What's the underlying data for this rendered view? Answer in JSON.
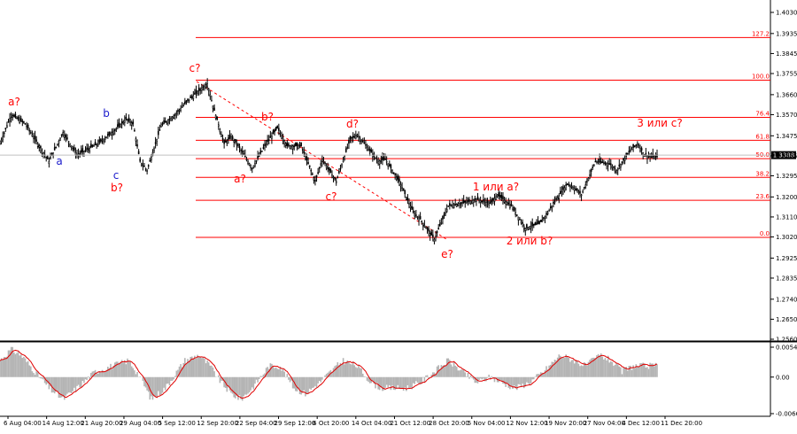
{
  "chart_data": {
    "type": "candlestick",
    "instrument_current_price": "1.3388",
    "price_axis": {
      "min": 1.256,
      "max": 1.403,
      "ticks": [
        "1.4030",
        "1.3935",
        "1.3845",
        "1.3755",
        "1.3660",
        "1.3570",
        "1.3475",
        "1.3385",
        "1.3295",
        "1.3200",
        "1.3110",
        "1.3020",
        "1.2925",
        "1.2835",
        "1.2740",
        "1.2650",
        "1.2560"
      ]
    },
    "time_axis": {
      "labels": [
        "6 Aug 04:00",
        "14 Aug 12:00",
        "21 Aug 20:00",
        "29 Aug 04:00",
        "5 Sep 12:00",
        "12 Sep 20:00",
        "22 Sep 04:00",
        "29 Sep 12:00",
        "6 Oct 20:00",
        "14 Oct 04:00",
        "21 Oct 12:00",
        "28 Oct 20:00",
        "5 Nov 04:00",
        "12 Nov 12:00",
        "19 Nov 20:00",
        "27 Nov 04:00",
        "4 Dec 12:00",
        "11 Dec 20:00"
      ]
    },
    "fibonacci_levels": [
      {
        "label": "127.2",
        "price": 1.3917
      },
      {
        "label": "100.0",
        "price": 1.3725
      },
      {
        "label": "76.4",
        "price": 1.3558
      },
      {
        "label": "61.8",
        "price": 1.3455
      },
      {
        "label": "50.0",
        "price": 1.3372
      },
      {
        "label": "38.2",
        "price": 1.3288
      },
      {
        "label": "23.6",
        "price": 1.3185
      },
      {
        "label": "0.0",
        "price": 1.3018
      }
    ],
    "wave_labels": [
      {
        "text": "a?",
        "color": "#ff0000"
      },
      {
        "text": "a",
        "color": "#1c1ccc"
      },
      {
        "text": "b",
        "color": "#1c1ccc"
      },
      {
        "text": "c",
        "color": "#1c1ccc"
      },
      {
        "text": "b?",
        "color": "#ff0000"
      },
      {
        "text": "c?",
        "color": "#ff0000"
      },
      {
        "text": "a?",
        "color": "#ff0000"
      },
      {
        "text": "b?",
        "color": "#ff0000"
      },
      {
        "text": "c?",
        "color": "#ff0000"
      },
      {
        "text": "d?",
        "color": "#ff0000"
      },
      {
        "text": "e?",
        "color": "#ff0000"
      },
      {
        "text": "1 или a?",
        "color": "#ff0000"
      },
      {
        "text": "2 или b?",
        "color": "#ff0000"
      },
      {
        "text": "3 или c?",
        "color": "#ff0000"
      }
    ],
    "price_path_keypoints": [
      [
        1.344,
        0
      ],
      [
        1.357,
        8
      ],
      [
        1.353,
        18
      ],
      [
        1.341,
        30
      ],
      [
        1.336,
        35
      ],
      [
        1.349,
        45
      ],
      [
        1.339,
        55
      ],
      [
        1.344,
        70
      ],
      [
        1.349,
        80
      ],
      [
        1.355,
        90
      ],
      [
        1.353,
        95
      ],
      [
        1.336,
        100
      ],
      [
        1.332,
        105
      ],
      [
        1.352,
        115
      ],
      [
        1.357,
        125
      ],
      [
        1.364,
        135
      ],
      [
        1.371,
        148
      ],
      [
        1.361,
        152
      ],
      [
        1.344,
        160
      ],
      [
        1.347,
        165
      ],
      [
        1.343,
        170
      ],
      [
        1.333,
        180
      ],
      [
        1.344,
        190
      ],
      [
        1.351,
        198
      ],
      [
        1.343,
        205
      ],
      [
        1.343,
        215
      ],
      [
        1.327,
        225
      ],
      [
        1.337,
        230
      ],
      [
        1.327,
        240
      ],
      [
        1.346,
        250
      ],
      [
        1.348,
        255
      ],
      [
        1.336,
        270
      ],
      [
        1.337,
        275
      ],
      [
        1.327,
        285
      ],
      [
        1.313,
        295
      ],
      [
        1.31,
        300
      ],
      [
        1.301,
        310
      ],
      [
        1.316,
        320
      ],
      [
        1.318,
        335
      ],
      [
        1.319,
        340
      ],
      [
        1.317,
        350
      ],
      [
        1.321,
        355
      ],
      [
        1.316,
        365
      ],
      [
        1.306,
        375
      ],
      [
        1.308,
        385
      ],
      [
        1.312,
        390
      ],
      [
        1.317,
        395
      ],
      [
        1.326,
        405
      ],
      [
        1.324,
        410
      ],
      [
        1.321,
        415
      ],
      [
        1.336,
        425
      ],
      [
        1.335,
        435
      ],
      [
        1.332,
        440
      ],
      [
        1.341,
        450
      ],
      [
        1.344,
        455
      ],
      [
        1.339,
        460
      ],
      [
        1.338,
        465
      ]
    ],
    "oscillator": {
      "axis_ticks": [
        "0.0054",
        "0.00",
        "-0.0066"
      ],
      "min": -0.0066,
      "max": 0.0054,
      "keypoints": [
        [
          0.003,
          0
        ],
        [
          0.005,
          8
        ],
        [
          0.004,
          15
        ],
        [
          0.001,
          25
        ],
        [
          -0.002,
          35
        ],
        [
          -0.004,
          45
        ],
        [
          -0.002,
          55
        ],
        [
          0.001,
          68
        ],
        [
          0.002,
          80
        ],
        [
          0.003,
          92
        ],
        [
          0.0,
          100
        ],
        [
          -0.004,
          108
        ],
        [
          -0.002,
          118
        ],
        [
          0.003,
          132
        ],
        [
          0.004,
          142
        ],
        [
          0.002,
          150
        ],
        [
          -0.001,
          158
        ],
        [
          -0.003,
          165
        ],
        [
          -0.004,
          172
        ],
        [
          -0.002,
          180
        ],
        [
          0.002,
          192
        ],
        [
          0.002,
          200
        ],
        [
          -0.002,
          210
        ],
        [
          -0.003,
          218
        ],
        [
          -0.001,
          228
        ],
        [
          0.001,
          236
        ],
        [
          0.003,
          245
        ],
        [
          0.002,
          255
        ],
        [
          -0.001,
          265
        ],
        [
          -0.002,
          272
        ],
        [
          -0.002,
          282
        ],
        [
          -0.002,
          290
        ],
        [
          -0.001,
          300
        ],
        [
          0.001,
          310
        ],
        [
          0.003,
          320
        ],
        [
          0.001,
          330
        ],
        [
          -0.001,
          340
        ],
        [
          0.0,
          350
        ],
        [
          -0.001,
          358
        ],
        [
          -0.002,
          368
        ],
        [
          -0.001,
          378
        ],
        [
          0.001,
          388
        ],
        [
          0.004,
          400
        ],
        [
          0.003,
          410
        ],
        [
          0.002,
          418
        ],
        [
          0.004,
          428
        ],
        [
          0.003,
          436
        ],
        [
          0.001,
          444
        ],
        [
          0.002,
          452
        ],
        [
          0.002,
          460
        ]
      ]
    }
  }
}
